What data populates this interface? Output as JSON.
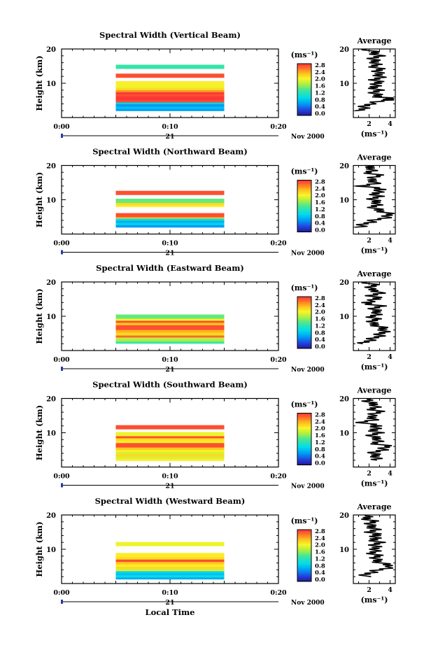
{
  "chart_data": {
    "type": "heatmap",
    "panels": [
      {
        "title": "Spectral Width (Vertical Beam)",
        "bands": [
          {
            "h": 2.5,
            "w": 0.7
          },
          {
            "h": 3.1,
            "w": 0.9
          },
          {
            "h": 3.8,
            "w": 0.7
          },
          {
            "h": 4.5,
            "w": 1.0
          },
          {
            "h": 5.0,
            "w": 2.9
          },
          {
            "h": 5.6,
            "w": 3.0
          },
          {
            "h": 6.2,
            "w": 3.0
          },
          {
            "h": 6.8,
            "w": 2.9
          },
          {
            "h": 7.4,
            "w": 3.0
          },
          {
            "h": 8.0,
            "w": 2.6
          },
          {
            "h": 8.6,
            "w": 2.3
          },
          {
            "h": 9.3,
            "w": 2.1
          },
          {
            "h": 10.0,
            "w": 2.2
          },
          {
            "h": 12.2,
            "w": 2.9
          },
          {
            "h": 14.8,
            "w": 1.4
          }
        ],
        "average": [
          [
            1.2,
            2
          ],
          [
            1.5,
            3
          ],
          [
            2.0,
            4
          ],
          [
            3.5,
            5
          ],
          [
            4.2,
            5.5
          ],
          [
            3.0,
            6
          ],
          [
            2.5,
            7
          ],
          [
            2.8,
            8
          ],
          [
            2.4,
            9
          ],
          [
            2.9,
            10
          ],
          [
            2.6,
            11
          ],
          [
            3.1,
            12
          ],
          [
            2.8,
            13
          ],
          [
            3.0,
            14
          ],
          [
            2.5,
            15
          ],
          [
            2.7,
            16
          ],
          [
            2.3,
            17
          ],
          [
            2.9,
            18
          ],
          [
            2.5,
            19
          ],
          [
            1.8,
            20
          ]
        ]
      },
      {
        "title": "Spectral Width (Northward Beam)",
        "bands": [
          {
            "h": 2.5,
            "w": 0.7
          },
          {
            "h": 3.2,
            "w": 1.0
          },
          {
            "h": 3.9,
            "w": 0.8
          },
          {
            "h": 4.5,
            "w": 1.1
          },
          {
            "h": 5.1,
            "w": 2.4
          },
          {
            "h": 5.5,
            "w": 2.9
          },
          {
            "h": 8.5,
            "w": 2.2
          },
          {
            "h": 9.1,
            "w": 2.3
          },
          {
            "h": 9.7,
            "w": 1.6
          },
          {
            "h": 12.0,
            "w": 2.9
          }
        ],
        "average": [
          [
            1.0,
            2
          ],
          [
            1.6,
            3
          ],
          [
            2.5,
            4
          ],
          [
            3.8,
            5
          ],
          [
            4.0,
            6
          ],
          [
            2.8,
            7
          ],
          [
            2.4,
            8
          ],
          [
            2.9,
            9
          ],
          [
            2.3,
            10
          ],
          [
            2.8,
            11
          ],
          [
            2.6,
            12
          ],
          [
            3.3,
            13
          ],
          [
            1.4,
            14
          ],
          [
            2.8,
            15
          ],
          [
            2.0,
            16
          ],
          [
            3.0,
            17
          ],
          [
            1.9,
            18
          ],
          [
            2.4,
            19
          ],
          [
            1.6,
            20
          ]
        ]
      },
      {
        "title": "Spectral Width (Eastward Beam)",
        "bands": [
          {
            "h": 2.6,
            "w": 1.4
          },
          {
            "h": 3.2,
            "w": 1.8
          },
          {
            "h": 3.8,
            "w": 1.9
          },
          {
            "h": 4.4,
            "w": 2.8
          },
          {
            "h": 5.0,
            "w": 2.3
          },
          {
            "h": 5.8,
            "w": 2.5
          },
          {
            "h": 6.6,
            "w": 2.9
          },
          {
            "h": 7.3,
            "w": 2.9
          },
          {
            "h": 8.0,
            "w": 2.4
          },
          {
            "h": 8.7,
            "w": 2.9
          },
          {
            "h": 9.3,
            "w": 2.1
          },
          {
            "h": 9.9,
            "w": 1.6
          }
        ],
        "average": [
          [
            1.4,
            2
          ],
          [
            2.0,
            3
          ],
          [
            2.8,
            4
          ],
          [
            3.2,
            5
          ],
          [
            3.5,
            6
          ],
          [
            3.0,
            7
          ],
          [
            2.2,
            8
          ],
          [
            2.6,
            9
          ],
          [
            2.3,
            10
          ],
          [
            2.9,
            11
          ],
          [
            2.4,
            12
          ],
          [
            3.0,
            13
          ],
          [
            1.6,
            14
          ],
          [
            2.8,
            15
          ],
          [
            2.3,
            16
          ],
          [
            3.1,
            17
          ],
          [
            2.0,
            18
          ],
          [
            2.5,
            19
          ],
          [
            1.8,
            20
          ]
        ]
      },
      {
        "title": "Spectral Width (Southward Beam)",
        "bands": [
          {
            "h": 2.4,
            "w": 2.2
          },
          {
            "h": 3.0,
            "w": 2.0
          },
          {
            "h": 3.6,
            "w": 2.3
          },
          {
            "h": 4.4,
            "w": 2.0
          },
          {
            "h": 5.0,
            "w": 2.2
          },
          {
            "h": 5.6,
            "w": 2.4
          },
          {
            "h": 6.3,
            "w": 2.9
          },
          {
            "h": 7.0,
            "w": 2.9
          },
          {
            "h": 7.6,
            "w": 2.2
          },
          {
            "h": 8.3,
            "w": 2.3
          },
          {
            "h": 9.0,
            "w": 2.9
          },
          {
            "h": 9.6,
            "w": 2.1
          },
          {
            "h": 11.6,
            "w": 2.9
          }
        ],
        "average": [
          [
            2.4,
            2
          ],
          [
            2.8,
            3
          ],
          [
            2.3,
            4
          ],
          [
            3.2,
            5
          ],
          [
            3.8,
            6
          ],
          [
            2.5,
            7
          ],
          [
            3.0,
            8
          ],
          [
            2.2,
            9
          ],
          [
            2.8,
            10
          ],
          [
            2.4,
            11
          ],
          [
            2.9,
            12
          ],
          [
            1.2,
            13
          ],
          [
            2.6,
            14
          ],
          [
            2.1,
            15
          ],
          [
            3.0,
            16
          ],
          [
            2.3,
            17
          ],
          [
            2.7,
            18
          ],
          [
            1.9,
            19
          ],
          [
            2.2,
            20
          ]
        ]
      },
      {
        "title": "Spectral Width (Westward Beam)",
        "bands": [
          {
            "h": 1.8,
            "w": 0.8
          },
          {
            "h": 2.4,
            "w": 1.1
          },
          {
            "h": 3.0,
            "w": 0.9
          },
          {
            "h": 3.6,
            "w": 1.0
          },
          {
            "h": 4.2,
            "w": 2.0
          },
          {
            "h": 4.8,
            "w": 2.3
          },
          {
            "h": 5.5,
            "w": 2.2
          },
          {
            "h": 6.2,
            "w": 2.4
          },
          {
            "h": 6.9,
            "w": 2.9
          },
          {
            "h": 7.6,
            "w": 2.3
          },
          {
            "h": 8.3,
            "w": 2.2
          },
          {
            "h": 11.5,
            "w": 2.1
          }
        ],
        "average": [
          [
            1.5,
            2
          ],
          [
            1.9,
            3
          ],
          [
            3.0,
            4
          ],
          [
            4.2,
            5
          ],
          [
            3.1,
            6
          ],
          [
            2.6,
            7
          ],
          [
            2.8,
            8
          ],
          [
            2.3,
            9
          ],
          [
            2.7,
            10
          ],
          [
            2.5,
            11
          ],
          [
            2.9,
            12
          ],
          [
            2.4,
            13
          ],
          [
            2.8,
            14
          ],
          [
            2.2,
            15
          ],
          [
            2.6,
            16
          ],
          [
            2.0,
            17
          ],
          [
            2.4,
            18
          ],
          [
            1.8,
            19
          ],
          [
            1.6,
            20
          ]
        ]
      }
    ],
    "band_time_range": [
      "0:05",
      "0:15"
    ],
    "x_ticks": [
      "0:00",
      "0:10",
      "0:20"
    ],
    "x_label": "Local Time",
    "date_label": "21",
    "date_right_label": "Nov 2000",
    "y_label": "Height (km)",
    "y_ticks": [
      "10",
      "20"
    ],
    "ylim": [
      0,
      20
    ],
    "colorbar": {
      "unit_label": "(ms⁻¹)",
      "ticks": [
        "2.8",
        "2.4",
        "2.0",
        "1.6",
        "1.2",
        "0.8",
        "0.4",
        "0.0"
      ],
      "range": [
        0,
        3.0
      ]
    },
    "average_panel": {
      "title": "Average",
      "xlabel": "(ms⁻¹)",
      "x_ticks": [
        "2",
        "4"
      ],
      "xlim": [
        0.5,
        4.5
      ],
      "y_ticks": [
        "10",
        "20"
      ],
      "ylim": [
        0,
        20
      ]
    }
  }
}
